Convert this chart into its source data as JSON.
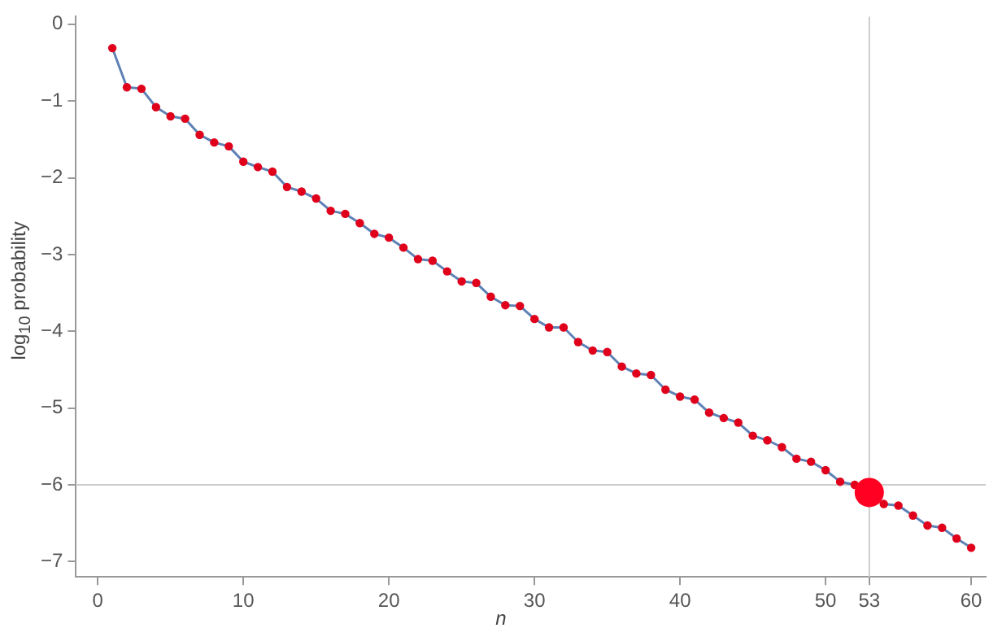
{
  "chart_data": {
    "type": "line",
    "xlabel": "n",
    "ylabel": "log$_{10}$ probability",
    "x": [
      1,
      2,
      3,
      4,
      5,
      6,
      7,
      8,
      9,
      10,
      11,
      12,
      13,
      14,
      15,
      16,
      17,
      18,
      19,
      20,
      21,
      22,
      23,
      24,
      25,
      26,
      27,
      28,
      29,
      30,
      31,
      32,
      33,
      34,
      35,
      36,
      37,
      38,
      39,
      40,
      41,
      42,
      43,
      44,
      45,
      46,
      47,
      48,
      49,
      50,
      51,
      52,
      53,
      54,
      55,
      56,
      57,
      58,
      59,
      60
    ],
    "series": [
      {
        "color": "#5e81b5",
        "marker": "none",
        "values": [
          -0.31,
          -0.82,
          -0.84,
          -1.08,
          -1.2,
          -1.23,
          -1.44,
          -1.54,
          -1.59,
          -1.79,
          -1.86,
          -1.92,
          -2.12,
          -2.18,
          -2.27,
          -2.43,
          -2.47,
          -2.59,
          -2.73,
          -2.78,
          -2.91,
          -3.06,
          -3.08,
          -3.22,
          -3.35,
          -3.37,
          -3.55,
          -3.66,
          -3.67,
          -3.84,
          -3.95,
          -3.95,
          -4.14,
          -4.25,
          -4.27,
          -4.46,
          -4.55,
          -4.57,
          -4.76,
          -4.85,
          -4.89,
          -5.06,
          -5.13,
          -5.19,
          -5.36,
          -5.42,
          -5.51,
          -5.66,
          -5.7,
          -5.81,
          -5.96,
          -6.0,
          null,
          -6.25,
          -6.27,
          -6.4,
          -6.53,
          -6.56,
          -6.7,
          -6.82
        ]
      },
      {
        "type": "scatter",
        "color": "#e0001b",
        "marker": "circle",
        "values": [
          -0.31,
          -0.82,
          -0.84,
          -1.08,
          -1.2,
          -1.23,
          -1.44,
          -1.54,
          -1.59,
          -1.79,
          -1.86,
          -1.92,
          -2.12,
          -2.18,
          -2.27,
          -2.43,
          -2.47,
          -2.59,
          -2.73,
          -2.78,
          -2.91,
          -3.06,
          -3.08,
          -3.22,
          -3.35,
          -3.37,
          -3.55,
          -3.66,
          -3.67,
          -3.84,
          -3.95,
          -3.95,
          -4.14,
          -4.25,
          -4.27,
          -4.46,
          -4.55,
          -4.57,
          -4.76,
          -4.85,
          -4.89,
          -5.06,
          -5.13,
          -5.19,
          -5.36,
          -5.42,
          -5.51,
          -5.66,
          -5.7,
          -5.81,
          -5.96,
          -6.0,
          null,
          -6.25,
          -6.27,
          -6.4,
          -6.53,
          -6.56,
          -6.7,
          -6.82
        ]
      },
      {
        "type": "bubble",
        "color": "#ff0022",
        "x": [
          53
        ],
        "values": [
          -6.1
        ],
        "sizes": [
          1
        ]
      }
    ],
    "xlim": [
      -1.5,
      61
    ],
    "xticks": [
      0,
      10,
      20,
      30,
      40,
      50,
      53,
      60
    ],
    "ylim": [
      -7.2,
      0.1
    ],
    "yticks": [
      0,
      -1,
      -2,
      -3,
      -4,
      -5,
      -6,
      -7
    ],
    "ref_lines": [
      {
        "axis": "x",
        "value": 53,
        "label": null,
        "color": "#cccccc"
      },
      {
        "axis": "y",
        "value": -6,
        "label": null,
        "color": "#cccccc"
      }
    ],
    "grid": false,
    "legend": false
  }
}
